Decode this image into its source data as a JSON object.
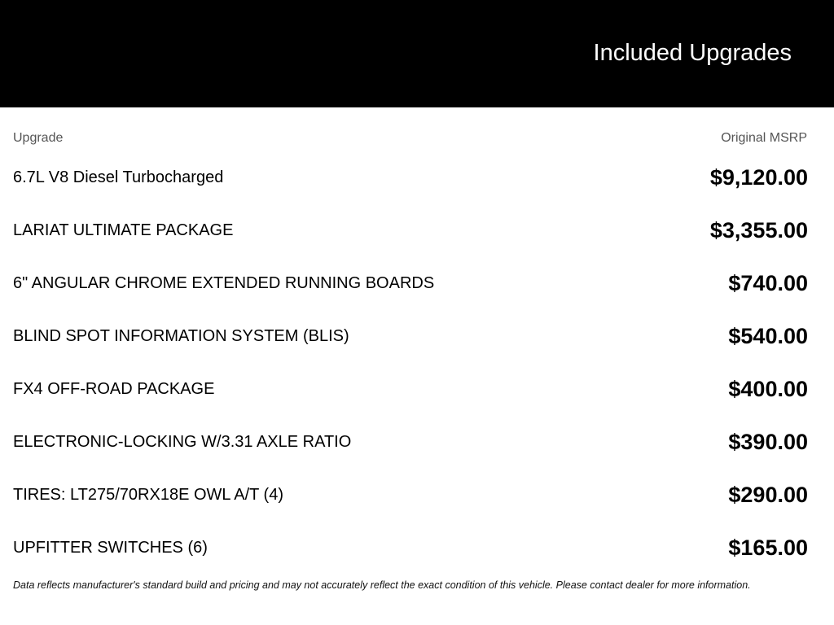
{
  "header": {
    "title": "Included Upgrades"
  },
  "table": {
    "col_upgrade": "Upgrade",
    "col_msrp": "Original MSRP",
    "rows": [
      {
        "name": "6.7L V8 Diesel Turbocharged",
        "price": "$9,120.00"
      },
      {
        "name": "LARIAT ULTIMATE PACKAGE",
        "price": "$3,355.00"
      },
      {
        "name": "6\" ANGULAR CHROME EXTENDED RUNNING BOARDS",
        "price": "$740.00"
      },
      {
        "name": "BLIND SPOT INFORMATION SYSTEM (BLIS)",
        "price": "$540.00"
      },
      {
        "name": "FX4 OFF-ROAD PACKAGE",
        "price": "$400.00"
      },
      {
        "name": "ELECTRONIC-LOCKING W/3.31 AXLE RATIO",
        "price": "$390.00"
      },
      {
        "name": "TIRES: LT275/70RX18E OWL A/T (4)",
        "price": "$290.00"
      },
      {
        "name": "UPFITTER SWITCHES (6)",
        "price": "$165.00"
      }
    ]
  },
  "footer": {
    "disclaimer": "Data reflects manufacturer's standard build and pricing and may not accurately reflect the exact condition of this vehicle. Please contact dealer for more information."
  }
}
